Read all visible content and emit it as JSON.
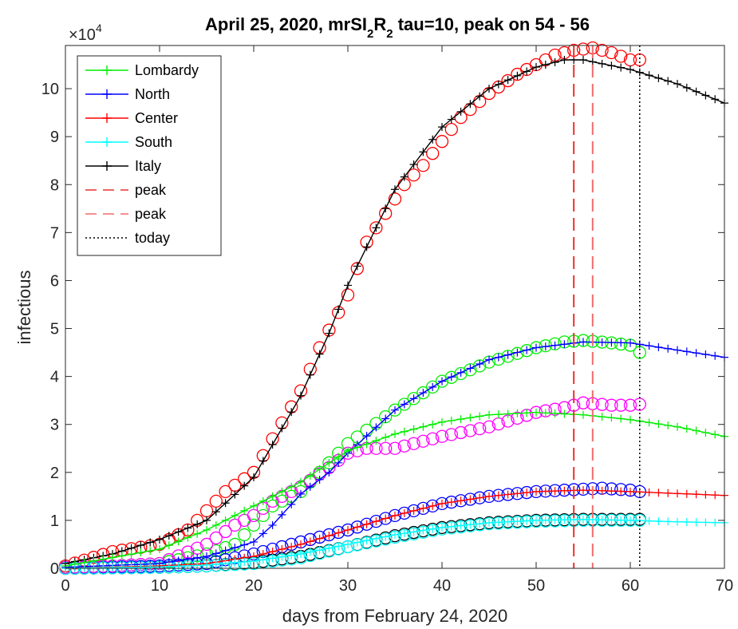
{
  "chart_data": {
    "type": "line",
    "title": {
      "prefix": "April 25, 2020, mrSI",
      "sub1": "2",
      "mid": "R",
      "sub2": "2",
      "suffix": " tau=10, peak on  54 - 56"
    },
    "xlabel": "days from February 24, 2020",
    "ylabel": "infectious",
    "exponent_base": "×10",
    "exponent_power": "4",
    "xlim": [
      0,
      70
    ],
    "ylim": [
      0,
      10.9
    ],
    "y_scale_note": "values in units of 10^4",
    "xticks": [
      0,
      10,
      20,
      30,
      40,
      50,
      60,
      70
    ],
    "yticks": [
      0,
      1,
      2,
      3,
      4,
      5,
      6,
      7,
      8,
      9,
      10
    ],
    "legend_position": "top-left",
    "legend": [
      {
        "label": "Lombardy",
        "color": "#00ee00",
        "style": "line-plus"
      },
      {
        "label": "North",
        "color": "#0000ff",
        "style": "line-plus"
      },
      {
        "label": "Center",
        "color": "#ff0000",
        "style": "line-plus"
      },
      {
        "label": "South",
        "color": "#00ffff",
        "style": "line-plus"
      },
      {
        "label": "Italy",
        "color": "#000000",
        "style": "line-plus"
      },
      {
        "label": "peak",
        "color": "#e8322d",
        "style": "dashed"
      },
      {
        "label": "peak",
        "color": "#f26b6b",
        "style": "dashed"
      },
      {
        "label": "today",
        "color": "#000000",
        "style": "dotted"
      }
    ],
    "model_series": [
      {
        "name": "Italy",
        "color": "#000000",
        "x": [
          0,
          5,
          10,
          15,
          20,
          25,
          28,
          30,
          35,
          40,
          45,
          50,
          53,
          55,
          60,
          65,
          70
        ],
        "y": [
          0.1,
          0.3,
          0.6,
          1.0,
          1.9,
          3.6,
          4.9,
          5.9,
          7.9,
          9.2,
          10.0,
          10.45,
          10.6,
          10.6,
          10.4,
          10.1,
          9.7
        ]
      },
      {
        "name": "North",
        "color": "#0000ff",
        "x": [
          0,
          10,
          15,
          20,
          22,
          25,
          28,
          30,
          35,
          40,
          45,
          50,
          55,
          60,
          65,
          70
        ],
        "y": [
          0.02,
          0.1,
          0.25,
          0.55,
          0.9,
          1.55,
          2.0,
          2.4,
          3.3,
          3.9,
          4.35,
          4.6,
          4.72,
          4.7,
          4.55,
          4.4
        ]
      },
      {
        "name": "Lombardy",
        "color": "#00ee00",
        "x": [
          0,
          10,
          15,
          20,
          22,
          25,
          28,
          30,
          35,
          40,
          45,
          50,
          55,
          60,
          65,
          70
        ],
        "y": [
          0.05,
          0.4,
          0.8,
          1.3,
          1.5,
          1.8,
          2.2,
          2.45,
          2.8,
          3.05,
          3.2,
          3.25,
          3.2,
          3.1,
          2.95,
          2.75
        ]
      },
      {
        "name": "Center",
        "color": "#ff0000",
        "x": [
          0,
          10,
          15,
          20,
          25,
          30,
          35,
          40,
          45,
          50,
          55,
          60,
          65,
          70
        ],
        "y": [
          0.0,
          0.05,
          0.1,
          0.25,
          0.5,
          0.8,
          1.1,
          1.35,
          1.5,
          1.6,
          1.63,
          1.6,
          1.56,
          1.52
        ]
      },
      {
        "name": "South",
        "color": "#00ffff",
        "x": [
          0,
          10,
          15,
          20,
          25,
          30,
          35,
          40,
          45,
          50,
          55,
          60,
          65,
          70
        ],
        "y": [
          0.0,
          0.03,
          0.07,
          0.15,
          0.3,
          0.5,
          0.7,
          0.85,
          0.95,
          1.0,
          1.02,
          1.0,
          0.97,
          0.95
        ]
      }
    ],
    "observed_series": [
      {
        "color": "#ff0000",
        "x": [
          0,
          5,
          10,
          13,
          15,
          17,
          20,
          22,
          25,
          27,
          30,
          32,
          34,
          36,
          38,
          40,
          42,
          45,
          48,
          50,
          52,
          54,
          56,
          58,
          60,
          61
        ],
        "y": [
          0.05,
          0.35,
          0.5,
          0.8,
          1.2,
          1.6,
          2.0,
          2.7,
          3.7,
          4.6,
          5.7,
          6.8,
          7.4,
          8.0,
          8.4,
          8.9,
          9.4,
          9.9,
          10.3,
          10.5,
          10.7,
          10.8,
          10.85,
          10.75,
          10.6,
          10.6
        ]
      },
      {
        "color": "#00ee00",
        "x": [
          0,
          5,
          10,
          15,
          18,
          20,
          22,
          25,
          28,
          30,
          35,
          40,
          45,
          50,
          53,
          55,
          58,
          60,
          61
        ],
        "y": [
          0.02,
          0.05,
          0.1,
          0.3,
          0.5,
          0.9,
          1.3,
          1.6,
          2.2,
          2.6,
          3.3,
          3.9,
          4.3,
          4.6,
          4.72,
          4.75,
          4.7,
          4.65,
          4.5
        ]
      },
      {
        "color": "#ff00ff",
        "x": [
          0,
          5,
          10,
          15,
          18,
          20,
          22,
          25,
          28,
          30,
          32,
          35,
          40,
          45,
          50,
          53,
          55,
          58,
          60,
          61
        ],
        "y": [
          0.02,
          0.05,
          0.1,
          0.5,
          0.9,
          1.1,
          1.4,
          1.7,
          2.1,
          2.4,
          2.5,
          2.5,
          2.75,
          2.95,
          3.25,
          3.35,
          3.45,
          3.4,
          3.4,
          3.42
        ]
      },
      {
        "color": "#0000ff",
        "x": [
          0,
          10,
          15,
          20,
          25,
          30,
          35,
          40,
          45,
          50,
          55,
          57,
          60,
          61
        ],
        "y": [
          0.0,
          0.05,
          0.1,
          0.3,
          0.55,
          0.8,
          1.1,
          1.35,
          1.5,
          1.6,
          1.65,
          1.67,
          1.63,
          1.6
        ]
      },
      {
        "color": "#000000",
        "x": [
          0,
          10,
          15,
          20,
          25,
          30,
          35,
          40,
          45,
          50,
          55,
          60,
          61
        ],
        "y": [
          0.0,
          0.02,
          0.05,
          0.12,
          0.25,
          0.45,
          0.68,
          0.85,
          0.95,
          1.0,
          1.02,
          1.02,
          1.02
        ]
      },
      {
        "color": "#00ffff",
        "x": [
          0,
          10,
          15,
          20,
          25,
          30,
          35,
          40,
          45,
          50,
          55,
          60,
          61
        ],
        "y": [
          0.0,
          0.02,
          0.05,
          0.1,
          0.22,
          0.45,
          0.65,
          0.82,
          0.93,
          0.98,
          1.0,
          1.0,
          1.0
        ]
      }
    ],
    "vlines": [
      {
        "x": 54,
        "color": "#e8322d",
        "style": "dashed"
      },
      {
        "x": 56,
        "color": "#f26b6b",
        "style": "dashed"
      },
      {
        "x": 61,
        "color": "#000000",
        "style": "dotted"
      }
    ]
  }
}
